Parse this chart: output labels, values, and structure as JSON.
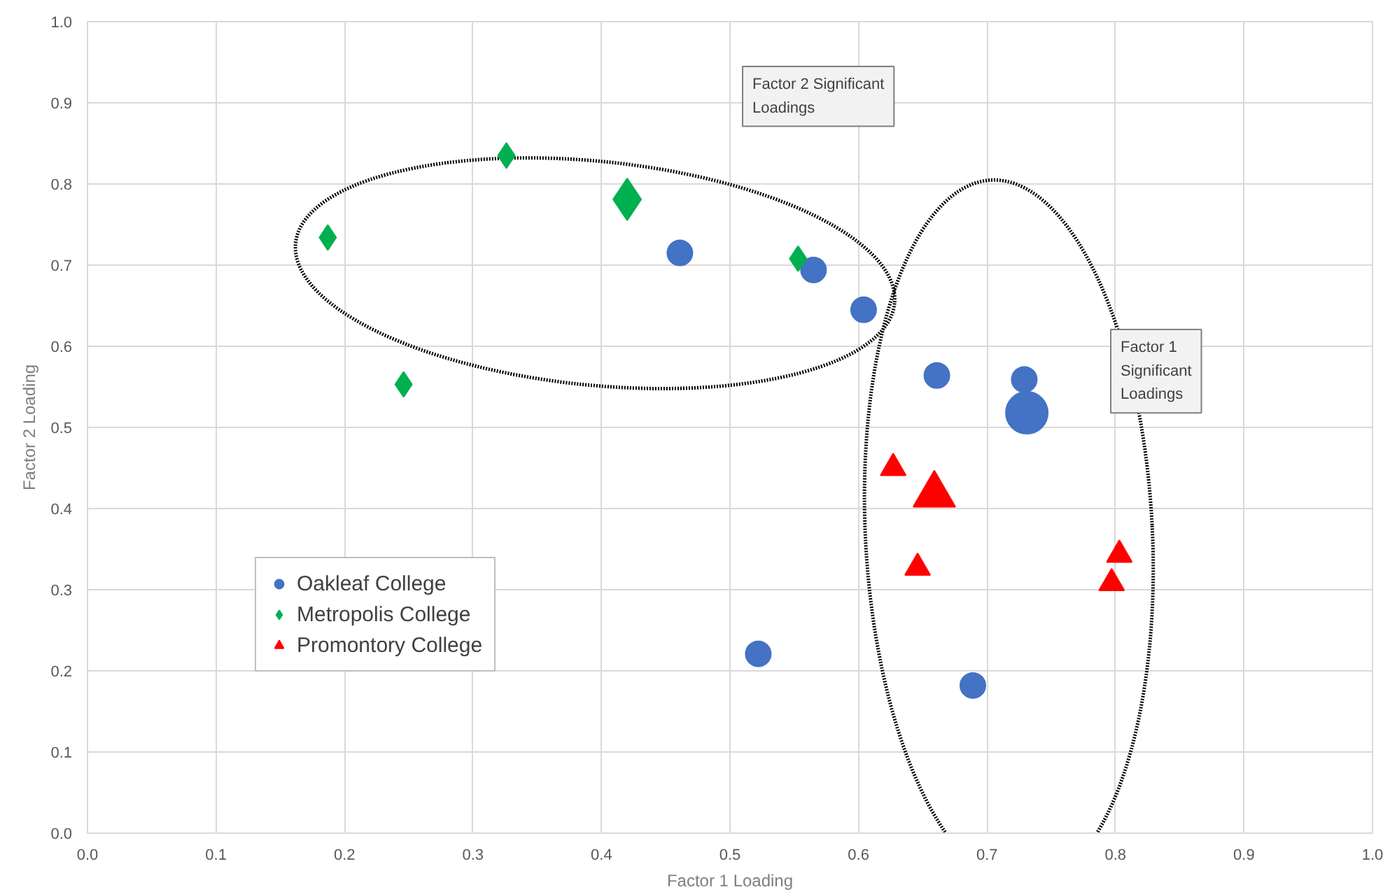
{
  "chart_data": {
    "type": "bubble",
    "xlabel": "Factor 1 Loading",
    "ylabel": "Factor 2 Loading",
    "xlim": [
      0,
      1
    ],
    "ylim": [
      0,
      1
    ],
    "xticks": [
      {
        "value": 0,
        "label": "0.0"
      },
      0.1,
      0.2,
      0.3,
      0.4,
      0.5,
      0.6,
      0.7,
      0.8,
      0.9,
      {
        "value": 1,
        "label": "1.0"
      }
    ],
    "yticks": [
      {
        "value": 0,
        "label": "0.0"
      },
      0.1,
      0.2,
      0.3,
      0.4,
      0.5,
      0.6,
      0.7,
      0.8,
      0.9,
      {
        "value": 1,
        "label": "1.0"
      }
    ],
    "grid": true,
    "legend": "bottom left",
    "series": [
      {
        "name": "Oakleaf College",
        "color": "#4472c4",
        "marker": "circle",
        "x": [
          0.461,
          0.565,
          0.604,
          0.661,
          0.729,
          0.731,
          0.522,
          0.689
        ],
        "values": [
          0.715,
          0.694,
          0.645,
          0.564,
          0.559,
          0.518,
          0.221,
          0.182
        ],
        "sizes": [
          0.36,
          0.36,
          0.36,
          0.36,
          0.36,
          1,
          0.36,
          0.36
        ]
      },
      {
        "name": "Metropolis College",
        "color": "#00b050",
        "marker": "diamond",
        "x": [
          0.187,
          0.326,
          0.42,
          0.553,
          0.246
        ],
        "values": [
          0.734,
          0.835,
          0.781,
          0.708,
          0.553
        ],
        "sizes": [
          0.153,
          0.153,
          0.426,
          0.153,
          0.153
        ]
      },
      {
        "name": "Promontory College",
        "color": "#ff0000",
        "marker": "triangle",
        "x": [
          0.627,
          0.659,
          0.646,
          0.797,
          0.803
        ],
        "values": [
          0.45,
          0.417,
          0.327,
          0.308,
          0.343
        ],
        "sizes": [
          0.199,
          0.554,
          0.199,
          0.199,
          0.199
        ]
      }
    ],
    "annotations": [
      "Factor 2 Significant Loadings",
      "Factor 1 Significant Loadings"
    ]
  }
}
